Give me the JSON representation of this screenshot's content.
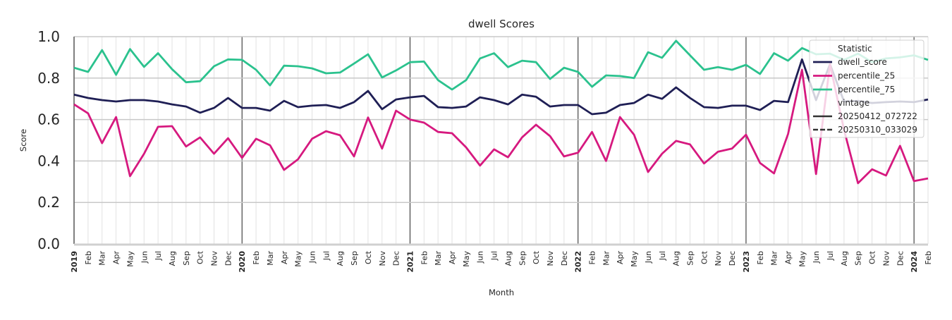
{
  "chart_data": {
    "type": "line",
    "title": "dwell Scores",
    "xlabel": "Month",
    "ylabel": "Score",
    "ylim": [
      0,
      1.0
    ],
    "yticks": [
      "0.0",
      "0.2",
      "0.4",
      "0.6",
      "0.8",
      "1.0"
    ],
    "grid": true,
    "legend_placement": "top-right",
    "x": [
      "2019",
      "Feb",
      "Mar",
      "Apr",
      "May",
      "Jun",
      "Jul",
      "Aug",
      "Sep",
      "Oct",
      "Nov",
      "Dec",
      "2020",
      "Feb",
      "Mar",
      "Apr",
      "May",
      "Jun",
      "Jul",
      "Aug",
      "Sep",
      "Oct",
      "Nov",
      "Dec",
      "2021",
      "Feb",
      "Mar",
      "Apr",
      "May",
      "Jun",
      "Jul",
      "Aug",
      "Sep",
      "Oct",
      "Nov",
      "Dec",
      "2022",
      "Feb",
      "Mar",
      "Apr",
      "May",
      "Jun",
      "Jul",
      "Aug",
      "Sep",
      "Oct",
      "Nov",
      "Dec",
      "2023",
      "Feb",
      "Mar",
      "Apr",
      "May",
      "Jun",
      "Jul",
      "Aug",
      "Sep",
      "Oct",
      "Nov",
      "Dec",
      "2024",
      "Feb"
    ],
    "series": [
      {
        "name": "dwell_score",
        "color": "#1f1f55",
        "values": [
          0.72,
          0.704,
          0.694,
          0.687,
          0.694,
          0.694,
          0.687,
          0.673,
          0.663,
          0.633,
          0.656,
          0.704,
          0.656,
          0.656,
          0.643,
          0.69,
          0.66,
          0.667,
          0.67,
          0.656,
          0.684,
          0.738,
          0.65,
          0.697,
          0.707,
          0.714,
          0.66,
          0.656,
          0.663,
          0.707,
          0.694,
          0.673,
          0.72,
          0.71,
          0.663,
          0.67,
          0.67,
          0.626,
          0.633,
          0.67,
          0.68,
          0.72,
          0.7,
          0.755,
          0.704,
          0.66,
          0.656,
          0.667,
          0.667,
          0.646,
          0.69,
          0.684,
          0.89,
          0.694,
          0.867,
          0.687,
          0.69,
          0.68,
          0.684,
          0.687,
          0.684,
          0.697
        ]
      },
      {
        "name": "percentile_25",
        "color": "#d6197f",
        "values": [
          0.673,
          0.63,
          0.486,
          0.612,
          0.327,
          0.435,
          0.565,
          0.568,
          0.47,
          0.514,
          0.435,
          0.51,
          0.415,
          0.507,
          0.476,
          0.357,
          0.408,
          0.507,
          0.544,
          0.524,
          0.422,
          0.61,
          0.46,
          0.643,
          0.6,
          0.585,
          0.54,
          0.534,
          0.466,
          0.378,
          0.456,
          0.418,
          0.514,
          0.575,
          0.52,
          0.422,
          0.44,
          0.54,
          0.4,
          0.612,
          0.527,
          0.347,
          0.435,
          0.497,
          0.48,
          0.388,
          0.445,
          0.46,
          0.527,
          0.39,
          0.34,
          0.53,
          0.84,
          0.337,
          0.867,
          0.55,
          0.293,
          0.36,
          0.33,
          0.473,
          0.303,
          0.316
        ]
      },
      {
        "name": "percentile_75",
        "color": "#2bc28e",
        "values": [
          0.85,
          0.83,
          0.935,
          0.816,
          0.94,
          0.854,
          0.92,
          0.843,
          0.78,
          0.785,
          0.857,
          0.89,
          0.888,
          0.84,
          0.765,
          0.86,
          0.857,
          0.847,
          0.823,
          0.827,
          0.87,
          0.915,
          0.803,
          0.837,
          0.877,
          0.88,
          0.79,
          0.745,
          0.79,
          0.895,
          0.92,
          0.853,
          0.884,
          0.877,
          0.796,
          0.85,
          0.83,
          0.758,
          0.813,
          0.81,
          0.8,
          0.925,
          0.898,
          0.98,
          0.91,
          0.84,
          0.853,
          0.84,
          0.864,
          0.82,
          0.92,
          0.884,
          0.945,
          0.915,
          0.918,
          0.888,
          0.918,
          0.877,
          0.895,
          0.9,
          0.91,
          0.888
        ]
      }
    ],
    "legend": {
      "title": "Statistic",
      "entries": [
        "dwell_score",
        "percentile_25",
        "percentile_75"
      ],
      "subtitle": "vintage",
      "vintages": [
        {
          "label": "20250412_072722",
          "style": "solid"
        },
        {
          "label": "20250310_033029",
          "style": "dashed"
        }
      ]
    }
  }
}
